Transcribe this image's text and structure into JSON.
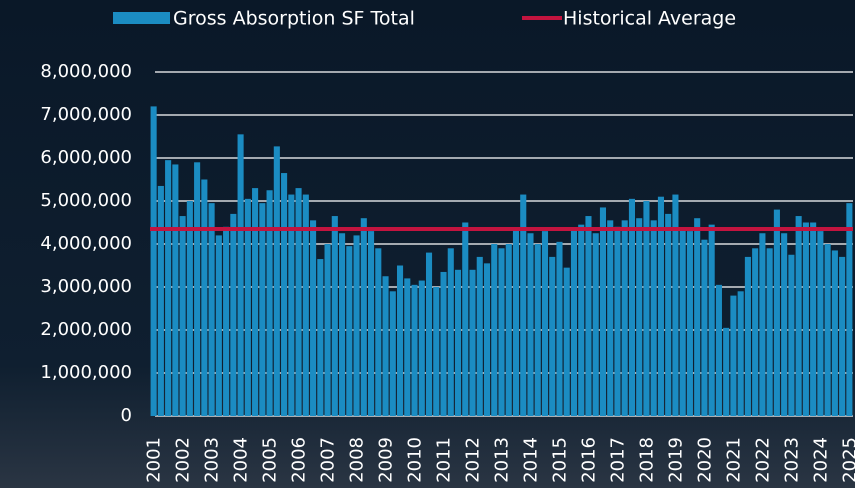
{
  "chart_data": {
    "type": "bar",
    "categories": [
      "2001",
      null,
      null,
      null,
      "2002",
      null,
      null,
      null,
      "2003",
      null,
      null,
      null,
      "2004",
      null,
      null,
      null,
      "2005",
      null,
      null,
      null,
      "2006",
      null,
      null,
      null,
      "2007",
      null,
      null,
      null,
      "2008",
      null,
      null,
      null,
      "2009",
      null,
      null,
      null,
      "2010",
      null,
      null,
      null,
      "2011",
      null,
      null,
      null,
      "2012",
      null,
      null,
      null,
      "2013",
      null,
      null,
      null,
      "2014",
      null,
      null,
      null,
      "2015",
      null,
      null,
      null,
      "2016",
      null,
      null,
      null,
      "2017",
      null,
      null,
      null,
      "2018",
      null,
      null,
      null,
      "2019",
      null,
      null,
      null,
      "2020",
      null,
      null,
      null,
      "2021",
      null,
      null,
      null,
      "2022",
      null,
      null,
      null,
      "2023",
      null,
      null,
      null,
      "2024",
      null,
      null,
      null,
      "2025"
    ],
    "series": [
      {
        "name": "Gross Absorption SF Total",
        "type": "bar",
        "color": "#1b8cc2",
        "values": [
          7200000,
          5350000,
          5950000,
          5850000,
          4650000,
          5000000,
          5900000,
          5500000,
          4950000,
          4200000,
          4400000,
          4700000,
          6550000,
          5050000,
          5300000,
          4950000,
          5250000,
          6270000,
          5650000,
          5150000,
          5300000,
          5150000,
          4550000,
          3650000,
          4000000,
          4650000,
          4250000,
          3950000,
          4200000,
          4600000,
          4300000,
          3900000,
          3250000,
          2900000,
          3500000,
          3200000,
          3050000,
          3150000,
          3800000,
          3000000,
          3350000,
          3900000,
          3400000,
          4500000,
          3400000,
          3700000,
          3550000,
          4000000,
          3900000,
          4000000,
          4350000,
          5150000,
          4250000,
          4000000,
          4300000,
          3700000,
          4050000,
          3450000,
          4350000,
          4450000,
          4650000,
          4250000,
          4850000,
          4550000,
          4400000,
          4550000,
          5050000,
          4600000,
          5000000,
          4550000,
          5100000,
          4700000,
          5150000,
          4350000,
          4300000,
          4600000,
          4100000,
          4450000,
          3050000,
          2050000,
          2800000,
          2900000,
          3700000,
          3900000,
          4250000,
          3900000,
          4800000,
          4250000,
          3750000,
          4650000,
          4500000,
          4500000,
          4300000,
          4000000,
          3850000,
          3700000,
          4950000
        ]
      },
      {
        "name": "Historical Average",
        "type": "line",
        "color": "#c3143f",
        "values": [
          4350000,
          4350000,
          4350000,
          4350000,
          4350000,
          4350000,
          4350000,
          4350000,
          4350000,
          4350000,
          4350000,
          4350000,
          4350000,
          4350000,
          4350000,
          4350000,
          4350000,
          4350000,
          4350000,
          4350000,
          4350000,
          4350000,
          4350000,
          4350000,
          4350000,
          4350000,
          4350000,
          4350000,
          4350000,
          4350000,
          4350000,
          4350000,
          4350000,
          4350000,
          4350000,
          4350000,
          4350000,
          4350000,
          4350000,
          4350000,
          4350000,
          4350000,
          4350000,
          4350000,
          4350000,
          4350000,
          4350000,
          4350000,
          4350000,
          4350000,
          4350000,
          4350000,
          4350000,
          4350000,
          4350000,
          4350000,
          4350000,
          4350000,
          4350000,
          4350000,
          4350000,
          4350000,
          4350000,
          4350000,
          4350000,
          4350000,
          4350000,
          4350000,
          4350000,
          4350000,
          4350000,
          4350000,
          4350000,
          4350000,
          4350000,
          4350000,
          4350000,
          4350000,
          4350000,
          4350000,
          4350000,
          4350000,
          4350000,
          4350000,
          4350000,
          4350000,
          4350000,
          4350000,
          4350000,
          4350000,
          4350000,
          4350000,
          4350000,
          4350000,
          4350000,
          4350000,
          4350000
        ]
      }
    ],
    "ylim": [
      0,
      8000000
    ],
    "yticks": [
      0,
      {
        "value": 1000000,
        "label": "1,000,000"
      },
      {
        "value": 2000000,
        "label": "2,000,000"
      },
      {
        "value": 3000000,
        "label": "3,000,000"
      },
      {
        "value": 4000000,
        "label": "4,000,000"
      },
      {
        "value": 5000000,
        "label": "5,000,000"
      },
      {
        "value": 6000000,
        "label": "6,000,000"
      },
      {
        "value": 7000000,
        "label": "7,000,000"
      },
      {
        "value": 8000000,
        "label": "8,000,000"
      }
    ],
    "grid": true,
    "legend": "top"
  }
}
